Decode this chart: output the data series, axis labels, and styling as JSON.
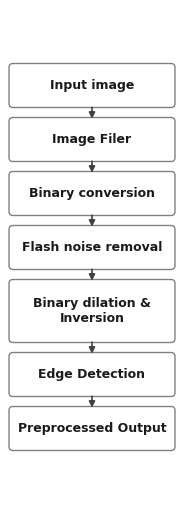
{
  "blocks": [
    "Input image",
    "Image Filer",
    "Binary conversion",
    "Flash noise removal",
    "Binary dilation &\nInversion",
    "Edge Detection",
    "Preprocessed Output"
  ],
  "bg_color": "#ffffff",
  "box_facecolor": "#ffffff",
  "box_edgecolor": "#808080",
  "text_color": "#1a1a1a",
  "arrow_color": "#404040",
  "font_size": 9.0,
  "font_weight": "bold",
  "fig_width": 1.84,
  "fig_height": 5.14
}
